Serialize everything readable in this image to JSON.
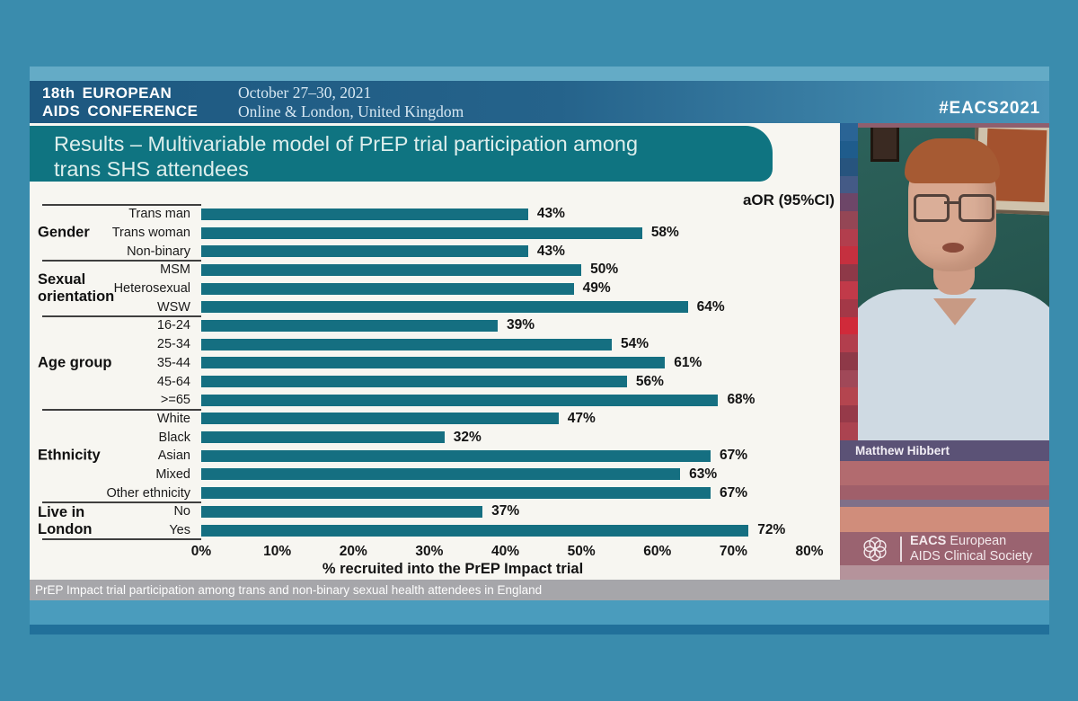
{
  "header": {
    "conference_line1": "18th EUROPEAN",
    "conference_line2": "AIDS CONFERENCE",
    "date": "October 27–30, 2021",
    "location": "Online & London, United Kingdom",
    "hashtag": "#EACS2021"
  },
  "slide": {
    "title_line1": "Results – Multivariable model of PrEP trial participation among",
    "title_line2": "trans SHS attendees",
    "caption": "PrEP Impact trial participation among trans and non-binary sexual health attendees in England"
  },
  "chart_data": {
    "type": "bar",
    "orientation": "horizontal",
    "title": "Results – Multivariable model of PrEP trial participation among trans SHS attendees",
    "annotation": "aOR (95%CI)",
    "xlabel": "% recruited into the PrEP Impact trial",
    "xlim": [
      0,
      80
    ],
    "x_ticks": [
      "0%",
      "10%",
      "20%",
      "30%",
      "40%",
      "50%",
      "60%",
      "70%",
      "80%"
    ],
    "bar_color": "#156f81",
    "value_suffix": "%",
    "groups": [
      {
        "label": "Gender",
        "items": [
          {
            "category": "Trans man",
            "value": 43
          },
          {
            "category": "Trans woman",
            "value": 58
          },
          {
            "category": "Non-binary",
            "value": 43
          }
        ]
      },
      {
        "label": "Sexual orientation",
        "items": [
          {
            "category": "MSM",
            "value": 50
          },
          {
            "category": "Heterosexual",
            "value": 49
          },
          {
            "category": "WSW",
            "value": 64
          }
        ]
      },
      {
        "label": "Age group",
        "items": [
          {
            "category": "16-24",
            "value": 39
          },
          {
            "category": "25-34",
            "value": 54
          },
          {
            "category": "35-44",
            "value": 61
          },
          {
            "category": "45-64",
            "value": 56
          },
          {
            "category": ">=65",
            "value": 68
          }
        ]
      },
      {
        "label": "Ethnicity",
        "items": [
          {
            "category": "White",
            "value": 47
          },
          {
            "category": "Black",
            "value": 32
          },
          {
            "category": "Asian",
            "value": 67
          },
          {
            "category": "Mixed",
            "value": 63
          },
          {
            "category": "Other ethnicity",
            "value": 67
          }
        ]
      },
      {
        "label": "Live in London",
        "items": [
          {
            "category": "No",
            "value": 37
          },
          {
            "category": "Yes",
            "value": 72
          }
        ]
      }
    ]
  },
  "presenter": {
    "name": "Matthew Hibbert"
  },
  "footer_logo": {
    "org_abbr": "EACS",
    "org_line1": "European",
    "org_line2": "AIDS Clinical Society"
  },
  "colors": {
    "page_bg": "#3a8cad",
    "header_dark": "#1d5880",
    "header_light": "#4a94b8",
    "banner_teal": "#0f7481",
    "bar_teal": "#156f81",
    "caption_gray": "#a6a6aa",
    "name_bar_purple": "#5b5276",
    "logo_bar_mauve": "#9a6370",
    "mosaic_palette": [
      "#2a6495",
      "#1f5c8c",
      "#27547e",
      "#445a86",
      "#6d4668",
      "#944655",
      "#b23e4d",
      "#c5303f",
      "#8e3948",
      "#c13a49",
      "#a33847",
      "#d02a3a",
      "#b23e4d",
      "#8e3948",
      "#a04858",
      "#b4454f",
      "#963a49",
      "#ab4350"
    ]
  }
}
